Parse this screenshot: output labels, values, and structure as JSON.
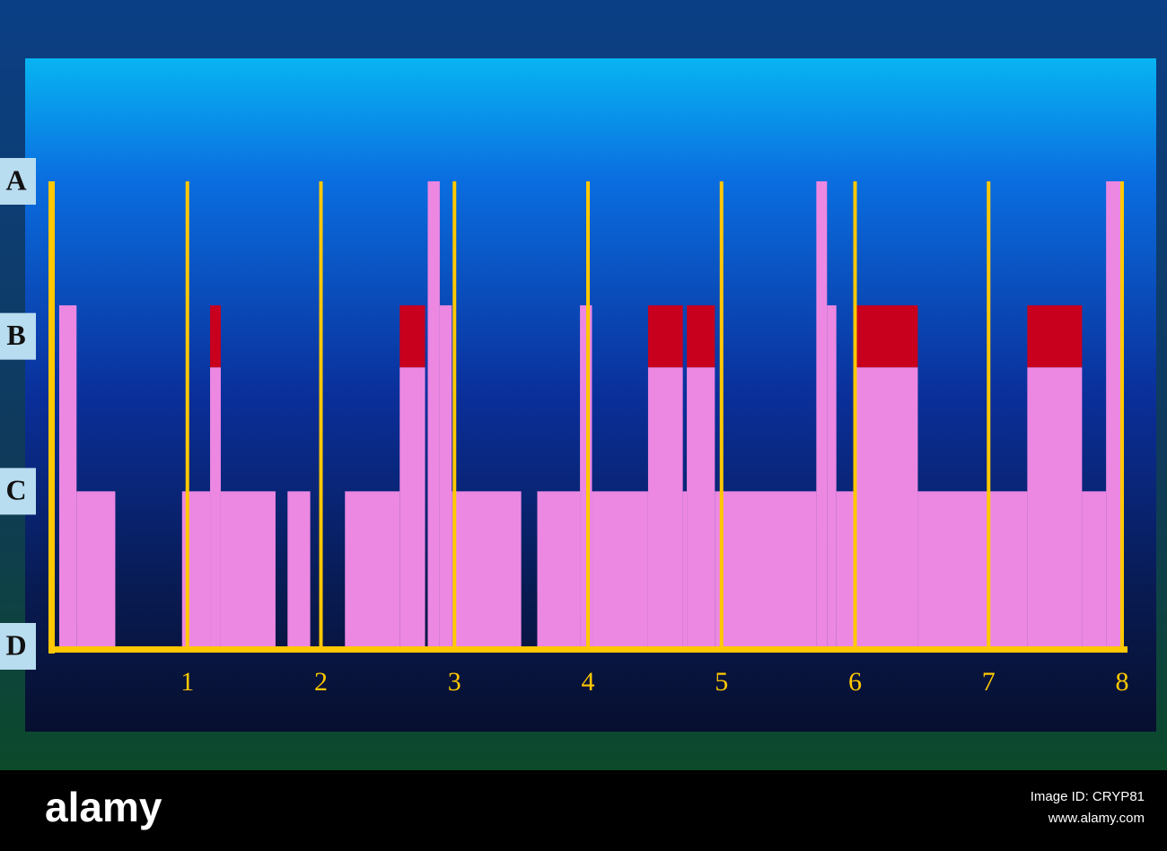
{
  "chart_data": {
    "type": "bar",
    "xlim": [
      0,
      8
    ],
    "xticks": [
      1,
      2,
      3,
      4,
      5,
      6,
      7,
      8
    ],
    "ylim": [
      0,
      3
    ],
    "yticks": [
      {
        "value": 3,
        "label": "A"
      },
      {
        "value": 2,
        "label": "B"
      },
      {
        "value": 1,
        "label": "C"
      },
      {
        "value": 0,
        "label": "D"
      }
    ],
    "color": "#ec88e2",
    "top_color": "#c8001e",
    "axis_color": "#ffc800",
    "segments": [
      {
        "x0": 0.04,
        "x1": 0.17,
        "value": 2.2
      },
      {
        "x0": 0.17,
        "x1": 0.46,
        "value": 1.0
      },
      {
        "x0": 0.96,
        "x1": 1.17,
        "value": 1.0
      },
      {
        "x0": 1.17,
        "x1": 1.25,
        "value": 1.8,
        "top": 0.4
      },
      {
        "x0": 1.25,
        "x1": 1.66,
        "value": 1.0
      },
      {
        "x0": 1.75,
        "x1": 1.92,
        "value": 1.0
      },
      {
        "x0": 2.18,
        "x1": 2.59,
        "value": 1.0
      },
      {
        "x0": 2.59,
        "x1": 2.78,
        "value": 1.8,
        "top": 0.4
      },
      {
        "x0": 2.8,
        "x1": 2.89,
        "value": 3.0
      },
      {
        "x0": 2.89,
        "x1": 2.98,
        "value": 2.2
      },
      {
        "x0": 2.98,
        "x1": 3.5,
        "value": 1.0
      },
      {
        "x0": 3.62,
        "x1": 3.94,
        "value": 1.0
      },
      {
        "x0": 3.94,
        "x1": 4.03,
        "value": 2.2
      },
      {
        "x0": 4.03,
        "x1": 4.45,
        "value": 1.0
      },
      {
        "x0": 4.45,
        "x1": 4.71,
        "value": 1.8,
        "top": 0.4
      },
      {
        "x0": 4.71,
        "x1": 4.74,
        "value": 1.0
      },
      {
        "x0": 4.74,
        "x1": 4.95,
        "value": 1.8,
        "top": 0.4
      },
      {
        "x0": 4.95,
        "x1": 5.71,
        "value": 1.0
      },
      {
        "x0": 5.71,
        "x1": 5.79,
        "value": 3.0
      },
      {
        "x0": 5.79,
        "x1": 5.86,
        "value": 2.2
      },
      {
        "x0": 5.86,
        "x1": 6.01,
        "value": 1.0
      },
      {
        "x0": 6.01,
        "x1": 6.47,
        "value": 1.8,
        "top": 0.4
      },
      {
        "x0": 6.47,
        "x1": 7.29,
        "value": 1.0
      },
      {
        "x0": 7.29,
        "x1": 7.7,
        "value": 1.8,
        "top": 0.4
      },
      {
        "x0": 7.7,
        "x1": 7.88,
        "value": 1.0
      },
      {
        "x0": 7.88,
        "x1": 7.99,
        "value": 3.0
      }
    ]
  },
  "footer": {
    "logo": "alamy",
    "image_id": "Image ID: CRYP81",
    "site": "www.alamy.com"
  }
}
